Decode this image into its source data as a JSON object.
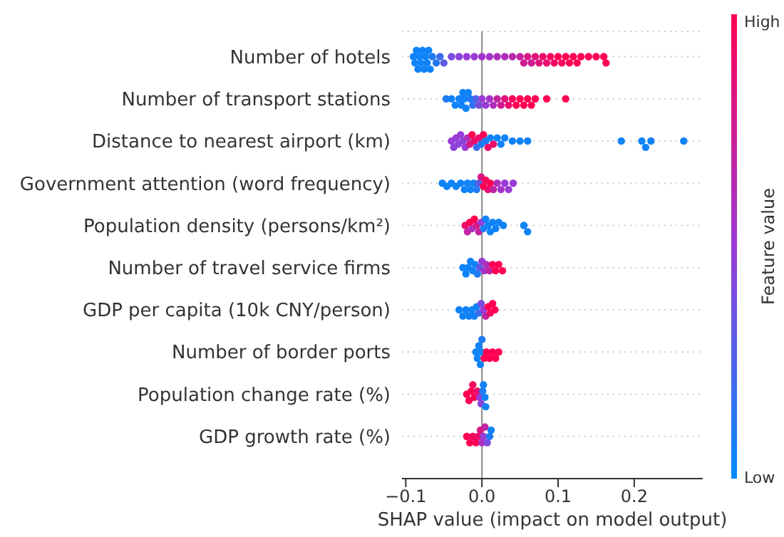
{
  "chart_data": {
    "type": "scatter",
    "orientation": "horizontal",
    "xlabel": "SHAP value (impact on model output)",
    "clabel": "Feature value",
    "categories": [
      "Number of hotels",
      "Number of transport stations",
      "Distance to nearest airport (km)",
      "Government attention (word frequency)",
      "Population density (persons/km²)",
      "Number of travel service firms",
      "GDP per capita (10k CNY/person)",
      "Number of border ports",
      "Population change rate (%)",
      "GDP growth rate (%)"
    ],
    "series": [
      {
        "x": [
          "Number of hotels",
          "Number of hotels",
          "Number of hotels",
          "Number of hotels",
          "Number of hotels",
          "Number of hotels",
          "Number of hotels",
          "Number of hotels",
          "Number of hotels",
          "Number of hotels",
          "Number of hotels",
          "Number of hotels",
          "Number of hotels",
          "Number of hotels",
          "Number of hotels",
          "Number of hotels",
          "Number of hotels",
          "Number of hotels",
          "Number of hotels",
          "Number of hotels",
          "Number of hotels",
          "Number of hotels",
          "Number of hotels",
          "Number of hotels",
          "Number of hotels",
          "Number of hotels",
          "Number of hotels",
          "Number of hotels",
          "Number of hotels",
          "Number of hotels",
          "Number of hotels",
          "Number of hotels",
          "Number of hotels",
          "Number of hotels",
          "Number of hotels",
          "Number of hotels",
          "Number of hotels",
          "Number of hotels",
          "Number of hotels",
          "Number of hotels",
          "Number of hotels",
          "Number of hotels",
          "Number of hotels",
          "Number of hotels",
          "Number of hotels",
          "Number of hotels"
        ],
        "values": [
          -0.09,
          -0.088,
          -0.086,
          -0.084,
          -0.082,
          -0.08,
          -0.078,
          -0.076,
          -0.074,
          -0.072,
          -0.07,
          -0.068,
          -0.065,
          -0.06,
          -0.055,
          -0.05,
          -0.04,
          -0.03,
          -0.02,
          -0.01,
          0.0,
          0.01,
          0.02,
          0.03,
          0.04,
          0.05,
          0.055,
          0.06,
          0.065,
          0.07,
          0.075,
          0.08,
          0.085,
          0.09,
          0.095,
          0.1,
          0.105,
          0.11,
          0.115,
          0.12,
          0.125,
          0.13,
          0.14,
          0.15,
          0.16,
          0.163
        ],
        "colors": [
          "#0f83f7",
          "#0f83f7",
          "#0f83f7",
          "#0f83f7",
          "#0f83f7",
          "#0f83f7",
          "#0f83f7",
          "#0f83f7",
          "#0f83f7",
          "#0f83f7",
          "#0f83f7",
          "#0f83f7",
          "#1f7bf4",
          "#2578f2",
          "#3e6bec",
          "#5c5be5",
          "#7b4bdd",
          "#8b43da",
          "#9a3bd6",
          "#9a3bd6",
          "#a435c9",
          "#a435c9",
          "#ae2fbc",
          "#ae2fbc",
          "#b829ae",
          "#c223a1",
          "#cd1e94",
          "#d71887",
          "#cd1e94",
          "#e1127a",
          "#e1127a",
          "#eb0c6c",
          "#eb0c6c",
          "#f5065f",
          "#f5065f",
          "#ff0052",
          "#f5065f",
          "#ff0052",
          "#ff0052",
          "#ff0052",
          "#ff0052",
          "#ff0052",
          "#ff0052",
          "#ff0052",
          "#ff0052",
          "#ff0052"
        ]
      },
      {
        "x": [
          "Number of transport stations",
          "Number of transport stations",
          "Number of transport stations",
          "Number of transport stations",
          "Number of transport stations",
          "Number of transport stations",
          "Number of transport stations",
          "Number of transport stations",
          "Number of transport stations",
          "Number of transport stations",
          "Number of transport stations",
          "Number of transport stations",
          "Number of transport stations",
          "Number of transport stations",
          "Number of transport stations",
          "Number of transport stations",
          "Number of transport stations",
          "Number of transport stations",
          "Number of transport stations",
          "Number of transport stations",
          "Number of transport stations",
          "Number of transport stations",
          "Number of transport stations",
          "Number of transport stations",
          "Number of transport stations",
          "Number of transport stations",
          "Number of transport stations",
          "Number of transport stations",
          "Number of transport stations",
          "Number of transport stations"
        ],
        "values": [
          -0.047,
          -0.04,
          -0.035,
          -0.03,
          -0.027,
          -0.025,
          -0.023,
          -0.021,
          -0.018,
          -0.015,
          -0.012,
          -0.008,
          -0.004,
          0.0,
          0.005,
          0.01,
          0.015,
          0.02,
          0.025,
          0.03,
          0.035,
          0.04,
          0.045,
          0.05,
          0.055,
          0.06,
          0.065,
          0.07,
          0.085,
          0.11
        ],
        "colors": [
          "#1f7bf4",
          "#0f83f7",
          "#0f83f7",
          "#0f83f7",
          "#0f83f7",
          "#0f83f7",
          "#0f83f7",
          "#0f83f7",
          "#0f83f7",
          "#1f7bf4",
          "#2e73f0",
          "#4d63e9",
          "#7b4bdd",
          "#9a3bd6",
          "#9a3bd6",
          "#a435c9",
          "#ae2fbc",
          "#c223a1",
          "#cd1e94",
          "#e1127a",
          "#eb0c6c",
          "#f5065f",
          "#ff0052",
          "#ff0052",
          "#ff0052",
          "#ff0052",
          "#ff0052",
          "#ff0052",
          "#ff0052",
          "#ff0052"
        ]
      },
      {
        "x": [
          "Distance to nearest airport (km)",
          "Distance to nearest airport (km)",
          "Distance to nearest airport (km)",
          "Distance to nearest airport (km)",
          "Distance to nearest airport (km)",
          "Distance to nearest airport (km)",
          "Distance to nearest airport (km)",
          "Distance to nearest airport (km)",
          "Distance to nearest airport (km)",
          "Distance to nearest airport (km)",
          "Distance to nearest airport (km)",
          "Distance to nearest airport (km)",
          "Distance to nearest airport (km)",
          "Distance to nearest airport (km)",
          "Distance to nearest airport (km)",
          "Distance to nearest airport (km)",
          "Distance to nearest airport (km)",
          "Distance to nearest airport (km)",
          "Distance to nearest airport (km)",
          "Distance to nearest airport (km)",
          "Distance to nearest airport (km)",
          "Distance to nearest airport (km)",
          "Distance to nearest airport (km)",
          "Distance to nearest airport (km)",
          "Distance to nearest airport (km)",
          "Distance to nearest airport (km)",
          "Distance to nearest airport (km)",
          "Distance to nearest airport (km)",
          "Distance to nearest airport (km)",
          "Distance to nearest airport (km)"
        ],
        "values": [
          -0.04,
          -0.037,
          -0.034,
          -0.031,
          -0.028,
          -0.025,
          -0.022,
          -0.019,
          -0.016,
          -0.013,
          -0.01,
          -0.007,
          -0.004,
          -0.001,
          0.002,
          0.005,
          0.008,
          0.011,
          0.015,
          0.02,
          0.025,
          0.03,
          0.04,
          0.05,
          0.06,
          0.183,
          0.21,
          0.215,
          0.222,
          0.265
        ],
        "colors": [
          "#9a3bd6",
          "#8b43da",
          "#9a3bd6",
          "#8b43da",
          "#9a3bd6",
          "#8b43da",
          "#9a3bd6",
          "#ae2fbc",
          "#d71887",
          "#ff0052",
          "#eb0c6c",
          "#3e6bec",
          "#eb0c6c",
          "#1f7bf4",
          "#ff0052",
          "#1f7bf4",
          "#eb0c6c",
          "#0f83f7",
          "#eb0c6c",
          "#0f83f7",
          "#0f83f7",
          "#0f83f7",
          "#0f83f7",
          "#0f83f7",
          "#0f83f7",
          "#0f83f7",
          "#0f83f7",
          "#0f83f7",
          "#0f83f7",
          "#0f83f7"
        ]
      },
      {
        "x": [
          "Government attention (word frequency)",
          "Government attention (word frequency)",
          "Government attention (word frequency)",
          "Government attention (word frequency)",
          "Government attention (word frequency)",
          "Government attention (word frequency)",
          "Government attention (word frequency)",
          "Government attention (word frequency)",
          "Government attention (word frequency)",
          "Government attention (word frequency)",
          "Government attention (word frequency)",
          "Government attention (word frequency)",
          "Government attention (word frequency)",
          "Government attention (word frequency)",
          "Government attention (word frequency)",
          "Government attention (word frequency)",
          "Government attention (word frequency)",
          "Government attention (word frequency)",
          "Government attention (word frequency)",
          "Government attention (word frequency)",
          "Government attention (word frequency)",
          "Government attention (word frequency)"
        ],
        "values": [
          -0.052,
          -0.046,
          -0.04,
          -0.034,
          -0.028,
          -0.023,
          -0.019,
          -0.015,
          -0.011,
          -0.007,
          -0.004,
          -0.001,
          0.002,
          0.005,
          0.008,
          0.011,
          0.015,
          0.02,
          0.025,
          0.03,
          0.035,
          0.041
        ],
        "colors": [
          "#0f83f7",
          "#0f83f7",
          "#0f83f7",
          "#0f83f7",
          "#0f83f7",
          "#0f83f7",
          "#0f83f7",
          "#0f83f7",
          "#0f83f7",
          "#1f7bf4",
          "#5c5be5",
          "#d71887",
          "#ff0052",
          "#f5065f",
          "#eb0c6c",
          "#ff0052",
          "#c223a1",
          "#ae2fbc",
          "#a435c9",
          "#9a3bd6",
          "#9a3bd6",
          "#9a3bd6"
        ]
      },
      {
        "x": [
          "Population density (persons/km²)",
          "Population density (persons/km²)",
          "Population density (persons/km²)",
          "Population density (persons/km²)",
          "Population density (persons/km²)",
          "Population density (persons/km²)",
          "Population density (persons/km²)",
          "Population density (persons/km²)",
          "Population density (persons/km²)",
          "Population density (persons/km²)",
          "Population density (persons/km²)",
          "Population density (persons/km²)",
          "Population density (persons/km²)",
          "Population density (persons/km²)",
          "Population density (persons/km²)",
          "Population density (persons/km²)",
          "Population density (persons/km²)",
          "Population density (persons/km²)"
        ],
        "values": [
          -0.022,
          -0.019,
          -0.016,
          -0.013,
          -0.01,
          -0.007,
          -0.004,
          -0.001,
          0.002,
          0.005,
          0.008,
          0.011,
          0.014,
          0.018,
          0.022,
          0.028,
          0.055,
          0.06
        ],
        "colors": [
          "#eb0c6c",
          "#c223a1",
          "#ff0052",
          "#ae2fbc",
          "#ff0052",
          "#d71887",
          "#c223a1",
          "#9a3bd6",
          "#1f7bf4",
          "#0f83f7",
          "#0f83f7",
          "#0f83f7",
          "#0f83f7",
          "#0f83f7",
          "#0f83f7",
          "#0f83f7",
          "#0f83f7",
          "#0f83f7"
        ]
      },
      {
        "x": [
          "Number of travel service firms",
          "Number of travel service firms",
          "Number of travel service firms",
          "Number of travel service firms",
          "Number of travel service firms",
          "Number of travel service firms",
          "Number of travel service firms",
          "Number of travel service firms",
          "Number of travel service firms",
          "Number of travel service firms",
          "Number of travel service firms",
          "Number of travel service firms",
          "Number of travel service firms",
          "Number of travel service firms",
          "Number of travel service firms",
          "Number of travel service firms"
        ],
        "values": [
          -0.025,
          -0.021,
          -0.018,
          -0.015,
          -0.012,
          -0.009,
          -0.006,
          -0.003,
          0.0,
          0.003,
          0.006,
          0.01,
          0.014,
          0.018,
          0.022,
          0.027
        ],
        "colors": [
          "#0f83f7",
          "#0f83f7",
          "#0f83f7",
          "#0f83f7",
          "#0f83f7",
          "#0f83f7",
          "#1f7bf4",
          "#5c5be5",
          "#9a3bd6",
          "#a435c9",
          "#ae2fbc",
          "#c223a1",
          "#ff0052",
          "#ff0052",
          "#ff0052",
          "#ff0052"
        ]
      },
      {
        "x": [
          "GDP per capita (10k CNY/person)",
          "GDP per capita (10k CNY/person)",
          "GDP per capita (10k CNY/person)",
          "GDP per capita (10k CNY/person)",
          "GDP per capita (10k CNY/person)",
          "GDP per capita (10k CNY/person)",
          "GDP per capita (10k CNY/person)",
          "GDP per capita (10k CNY/person)",
          "GDP per capita (10k CNY/person)",
          "GDP per capita (10k CNY/person)",
          "GDP per capita (10k CNY/person)",
          "GDP per capita (10k CNY/person)",
          "GDP per capita (10k CNY/person)",
          "GDP per capita (10k CNY/person)",
          "GDP per capita (10k CNY/person)"
        ],
        "values": [
          -0.03,
          -0.025,
          -0.021,
          -0.017,
          -0.013,
          -0.01,
          -0.007,
          -0.004,
          -0.001,
          0.002,
          0.005,
          0.008,
          0.011,
          0.014,
          0.017
        ],
        "colors": [
          "#0f83f7",
          "#0f83f7",
          "#0f83f7",
          "#0f83f7",
          "#0f83f7",
          "#0f83f7",
          "#0f83f7",
          "#3e6bec",
          "#7b4bdd",
          "#9a3bd6",
          "#c223a1",
          "#ff0052",
          "#f5065f",
          "#ff0052",
          "#ff0052"
        ]
      },
      {
        "x": [
          "Number of border ports",
          "Number of border ports",
          "Number of border ports",
          "Number of border ports",
          "Number of border ports",
          "Number of border ports",
          "Number of border ports",
          "Number of border ports",
          "Number of border ports",
          "Number of border ports",
          "Number of border ports",
          "Number of border ports"
        ],
        "values": [
          -0.008,
          -0.006,
          -0.004,
          -0.002,
          -0.001,
          0.0,
          0.003,
          0.006,
          0.01,
          0.014,
          0.018,
          0.022
        ],
        "colors": [
          "#0f83f7",
          "#0f83f7",
          "#0f83f7",
          "#0f83f7",
          "#0f83f7",
          "#1f7bf4",
          "#ff0052",
          "#ff0052",
          "#ff0052",
          "#ff0052",
          "#ff0052",
          "#ff0052"
        ]
      },
      {
        "x": [
          "Population change rate (%)",
          "Population change rate (%)",
          "Population change rate (%)",
          "Population change rate (%)",
          "Population change rate (%)",
          "Population change rate (%)",
          "Population change rate (%)",
          "Population change rate (%)",
          "Population change rate (%)",
          "Population change rate (%)",
          "Population change rate (%)",
          "Population change rate (%)"
        ],
        "values": [
          -0.02,
          -0.017,
          -0.014,
          -0.012,
          -0.01,
          -0.006,
          -0.003,
          -0.001,
          0.001,
          0.002,
          0.004,
          0.005
        ],
        "colors": [
          "#ff0052",
          "#ff0052",
          "#ff0052",
          "#f5065f",
          "#ff0052",
          "#eb0c6c",
          "#9a3bd6",
          "#8b43da",
          "#1f7bf4",
          "#0f83f7",
          "#0f83f7",
          "#0f83f7"
        ]
      },
      {
        "x": [
          "GDP growth rate (%)",
          "GDP growth rate (%)",
          "GDP growth rate (%)",
          "GDP growth rate (%)",
          "GDP growth rate (%)",
          "GDP growth rate (%)",
          "GDP growth rate (%)",
          "GDP growth rate (%)",
          "GDP growth rate (%)",
          "GDP growth rate (%)",
          "GDP growth rate (%)",
          "GDP growth rate (%)"
        ],
        "values": [
          -0.02,
          -0.016,
          -0.012,
          -0.008,
          -0.005,
          -0.002,
          0.0,
          0.002,
          0.004,
          0.007,
          0.01,
          0.012
        ],
        "colors": [
          "#ff0052",
          "#ff0052",
          "#f5065f",
          "#ff0052",
          "#eb0c6c",
          "#d71887",
          "#ae2fbc",
          "#9a3bd6",
          "#c223a1",
          "#7b4bdd",
          "#1f7bf4",
          "#0f83f7"
        ]
      }
    ],
    "xlim": [
      -0.105,
      0.29
    ],
    "xticks": [
      {
        "value": -0.1,
        "label": "−0.1"
      },
      {
        "value": 0,
        "label": "0.0"
      },
      {
        "value": 0.1,
        "label": "0.1"
      },
      {
        "value": 0.2,
        "label": "0.2"
      }
    ],
    "clim": [
      0,
      1
    ],
    "cticks": [
      {
        "value": 0,
        "label": "Low"
      },
      {
        "value": 1,
        "label": "High"
      }
    ],
    "grid": "y",
    "marker": "circle",
    "ref_lines": [
      {
        "axis": "x",
        "value": 0,
        "color": "#999999"
      }
    ]
  }
}
